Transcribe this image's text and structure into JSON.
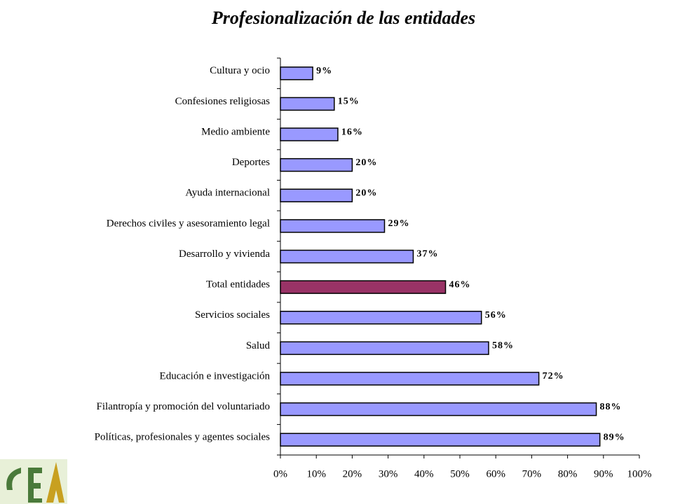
{
  "chart_data": {
    "type": "hbar",
    "title": "Profesionalización de las entidades",
    "categories": [
      "Cultura y ocio",
      "Confesiones religiosas",
      "Medio ambiente",
      "Deportes",
      "Ayuda internacional",
      "Derechos civiles y asesoramiento legal",
      "Desarrollo y vivienda",
      "Total entidades",
      "Servicios sociales",
      "Salud",
      "Educación e investigación",
      "Filantropía y promoción del voluntariado",
      "Políticas, profesionales y agentes sociales"
    ],
    "values": [
      9,
      15,
      16,
      20,
      20,
      29,
      37,
      46,
      56,
      58,
      72,
      88,
      89
    ],
    "value_labels": [
      "9%",
      "15%",
      "16%",
      "20%",
      "20%",
      "29%",
      "37%",
      "46%",
      "56%",
      "58%",
      "72%",
      "88%",
      "89%"
    ],
    "colors": [
      "#9999ff",
      "#9999ff",
      "#9999ff",
      "#9999ff",
      "#9999ff",
      "#9999ff",
      "#9999ff",
      "#993366",
      "#9999ff",
      "#9999ff",
      "#9999ff",
      "#9999ff",
      "#9999ff"
    ],
    "xlim": [
      0,
      100
    ],
    "xticks": [
      {
        "value": 0,
        "label": "0%"
      },
      {
        "value": 10,
        "label": "10%"
      },
      {
        "value": 20,
        "label": "20%"
      },
      {
        "value": 30,
        "label": "30%"
      },
      {
        "value": 40,
        "label": "40%"
      },
      {
        "value": 50,
        "label": "50%"
      },
      {
        "value": 60,
        "label": "60%"
      },
      {
        "value": 70,
        "label": "70%"
      },
      {
        "value": 80,
        "label": "80%"
      },
      {
        "value": 90,
        "label": "90%"
      },
      {
        "value": 100,
        "label": "100%"
      }
    ],
    "grid": false
  }
}
